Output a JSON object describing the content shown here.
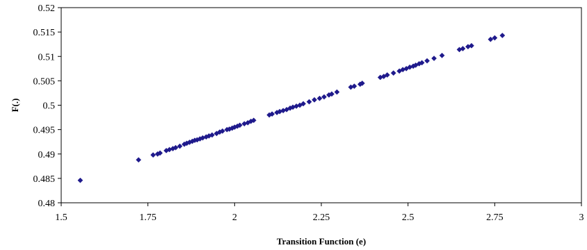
{
  "chart_data": {
    "type": "scatter",
    "title": "",
    "xlabel": "Transition Function (e)",
    "ylabel": "F(.)",
    "xlim": [
      1.5,
      3
    ],
    "ylim": [
      0.48,
      0.52
    ],
    "xticks": [
      1.5,
      1.75,
      2,
      2.25,
      2.5,
      2.75,
      3
    ],
    "xtick_labels": [
      "1.5",
      "1.75",
      "2",
      "2.25",
      "2.5",
      "2.75",
      "3"
    ],
    "yticks": [
      0.48,
      0.485,
      0.49,
      0.495,
      0.5,
      0.505,
      0.51,
      0.515,
      0.52
    ],
    "ytick_labels": [
      "0.48",
      "0.485",
      "0.49",
      "0.495",
      "0.5",
      "0.505",
      "0.51",
      "0.515",
      "0.52"
    ],
    "grid": false,
    "legend": "none",
    "marker": "diamond",
    "color": "#1f1a8c",
    "series": [
      {
        "x": [
          1.555,
          1.723,
          1.765,
          1.778,
          1.785,
          1.803,
          1.812,
          1.822,
          1.83,
          1.842,
          1.855,
          1.862,
          1.87,
          1.878,
          1.885,
          1.892,
          1.9,
          1.908,
          1.918,
          1.926,
          1.935,
          1.948,
          1.957,
          1.965,
          1.978,
          1.985,
          1.993,
          2.0,
          2.008,
          2.015,
          2.028,
          2.038,
          2.047,
          2.055,
          2.1,
          2.108,
          2.122,
          2.13,
          2.14,
          2.15,
          2.16,
          2.168,
          2.178,
          2.188,
          2.198,
          2.215,
          2.23,
          2.245,
          2.258,
          2.272,
          2.28,
          2.295,
          2.335,
          2.345,
          2.362,
          2.368,
          2.42,
          2.43,
          2.44,
          2.458,
          2.475,
          2.485,
          2.495,
          2.505,
          2.515,
          2.522,
          2.532,
          2.54,
          2.555,
          2.575,
          2.598,
          2.648,
          2.658,
          2.673,
          2.683,
          2.738,
          2.75,
          2.772
        ],
        "y": [
          0.4846,
          0.4888,
          0.4898,
          0.49,
          0.4902,
          0.4907,
          0.4909,
          0.4911,
          0.4913,
          0.4916,
          0.492,
          0.4922,
          0.4924,
          0.4926,
          0.4928,
          0.4929,
          0.4931,
          0.4933,
          0.4935,
          0.4937,
          0.4939,
          0.4942,
          0.4945,
          0.4947,
          0.495,
          0.4951,
          0.4953,
          0.4955,
          0.4957,
          0.4959,
          0.4962,
          0.4964,
          0.4967,
          0.4969,
          0.498,
          0.4982,
          0.4985,
          0.4987,
          0.4989,
          0.4991,
          0.4994,
          0.4996,
          0.4998,
          0.5,
          0.5003,
          0.5007,
          0.5011,
          0.5014,
          0.5017,
          0.5021,
          0.5023,
          0.5027,
          0.5037,
          0.5039,
          0.5043,
          0.5045,
          0.5057,
          0.5059,
          0.5062,
          0.5066,
          0.507,
          0.5073,
          0.5075,
          0.5078,
          0.508,
          0.5082,
          0.5085,
          0.5087,
          0.5091,
          0.5096,
          0.5102,
          0.5114,
          0.5116,
          0.512,
          0.5122,
          0.5135,
          0.5138,
          0.5143
        ]
      }
    ]
  }
}
